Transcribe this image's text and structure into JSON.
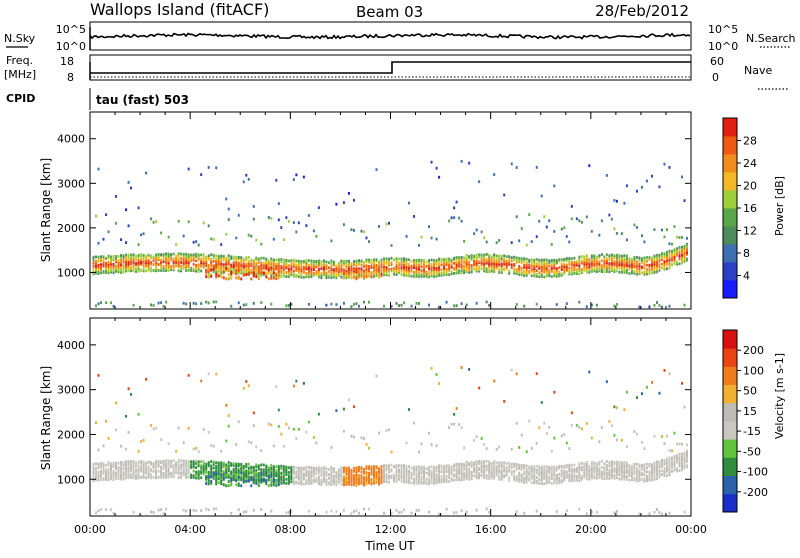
{
  "header": {
    "station": "Wallops Island (fitACF)",
    "beam": "Beam 03",
    "date": "28/Feb/2012"
  },
  "noise_panel": {
    "left_label": "N.Sky",
    "left_ticks": [
      "10^5",
      "10^0"
    ],
    "right_label": "N.Search",
    "right_ticks": [
      "10^5",
      "10^0"
    ]
  },
  "freq_panel": {
    "left_label_1": "Freq.",
    "left_label_2": "[MHz]",
    "left_ticks": [
      "18",
      "8"
    ],
    "right_label": "Nave",
    "right_ticks": [
      "60",
      "0"
    ],
    "cpid_label": "CPID",
    "cpid_text": "tau (fast) 503"
  },
  "colors": {
    "power": [
      "#1a1aff",
      "#2b3fc9",
      "#3f6fb0",
      "#4d8a5c",
      "#5aa74a",
      "#9fcf3a",
      "#f2b825",
      "#f28c1c",
      "#ef5a14",
      "#e02010"
    ],
    "velocity": [
      "#1c2ec9",
      "#2c62a8",
      "#2f8c3c",
      "#63c33a",
      "#c8c8c0",
      "#bdbdb6",
      "#f0b030",
      "#f07c1c",
      "#ea4412",
      "#d91010"
    ]
  },
  "chart_data": [
    {
      "type": "heatmap",
      "title": "",
      "xlabel": "Time UT",
      "ylabel": "Slant Range [km]",
      "x_ticks": [
        "00:00",
        "04:00",
        "08:00",
        "12:00",
        "16:00",
        "20:00",
        "00:00"
      ],
      "y_ticks": [
        "1000",
        "2000",
        "3000",
        "4000"
      ],
      "xlim": [
        0,
        24
      ],
      "ylim": [
        180,
        4600
      ],
      "colorbar": {
        "label": "Power [dB]",
        "ticks": [
          "28",
          "24",
          "20",
          "16",
          "12",
          "8",
          "4"
        ],
        "range": [
          0,
          32
        ]
      },
      "features": [
        {
          "x": [
            0,
            12
          ],
          "y": [
            1100,
            1600
          ],
          "value_range": [
            8,
            28
          ]
        },
        {
          "x": [
            12,
            24
          ],
          "y": [
            1200,
            1500
          ],
          "value_range": [
            16,
            32
          ]
        }
      ]
    },
    {
      "type": "heatmap",
      "title": "",
      "xlabel": "Time UT",
      "ylabel": "Slant Range [km]",
      "x_ticks": [
        "00:00",
        "04:00",
        "08:00",
        "12:00",
        "16:00",
        "20:00",
        "00:00"
      ],
      "y_ticks": [
        "1000",
        "2000",
        "3000",
        "4000"
      ],
      "xlim": [
        0,
        24
      ],
      "ylim": [
        180,
        4600
      ],
      "colorbar": {
        "label": "Velocity [m s-1]",
        "ticks": [
          "200",
          "100",
          "50",
          "15",
          "-15",
          "-50",
          "-100",
          "-200"
        ],
        "range": [
          -250,
          250
        ]
      },
      "features": [
        {
          "x": [
            0,
            24
          ],
          "y": [
            1300,
            1600
          ],
          "value_range": [
            -15,
            15
          ]
        },
        {
          "x": [
            4,
            8
          ],
          "y": [
            900,
            1600
          ],
          "value_range": [
            15,
            100
          ]
        },
        {
          "x": [
            10,
            11.5
          ],
          "y": [
            800,
            1200
          ],
          "value_range": [
            -100,
            -50
          ]
        }
      ]
    }
  ]
}
